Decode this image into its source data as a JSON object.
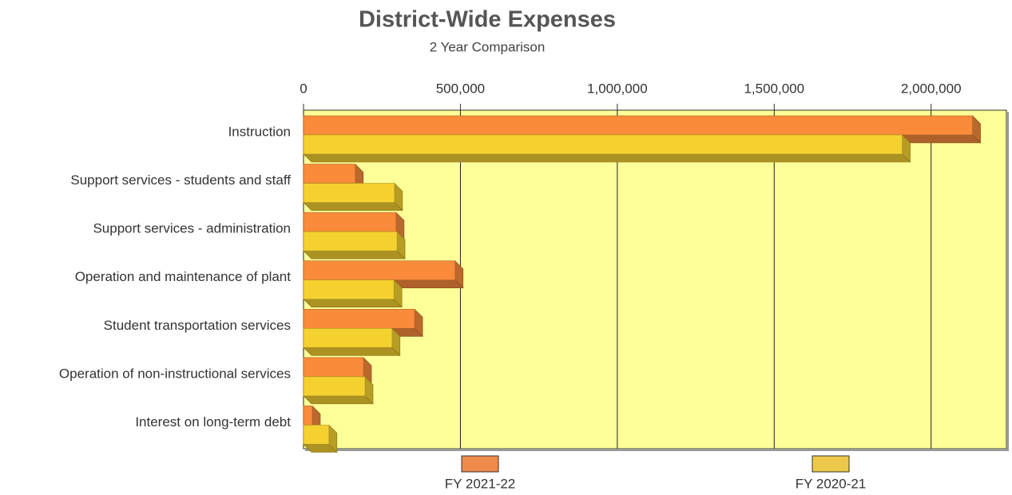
{
  "chart_data": {
    "type": "bar",
    "orientation": "horizontal",
    "title": "District-Wide Expenses",
    "subtitle": "2 Year Comparison",
    "categories": [
      "Instruction",
      "Support services - students and staff",
      "Support services - administration",
      "Operation and maintenance of plant",
      "Student transportation services",
      "Operation of non-instructional services",
      "Interest on long-term debt"
    ],
    "series": [
      {
        "name": "FY 2021-22",
        "color": "#f98b3a",
        "legend_color": "#f08a4b",
        "values": [
          2132000,
          165000,
          295000,
          483000,
          354000,
          191000,
          28000
        ]
      },
      {
        "name": "FY 2020-21",
        "color": "#f5d130",
        "legend_color": "#ecc94a",
        "values": [
          1908000,
          290000,
          298000,
          288000,
          282000,
          196000,
          81000
        ]
      }
    ],
    "xlim": [
      0,
      2240000
    ],
    "xticks": [
      0,
      {
        "value": 500000,
        "label": "500,000"
      },
      {
        "value": 1000000,
        "label": "1,000,000"
      },
      {
        "value": 1500000,
        "label": "1,500,000"
      },
      {
        "value": 2000000,
        "label": "2,000,000"
      }
    ],
    "grid": true,
    "legend": "bottom",
    "plot_background": "#ffff99"
  }
}
